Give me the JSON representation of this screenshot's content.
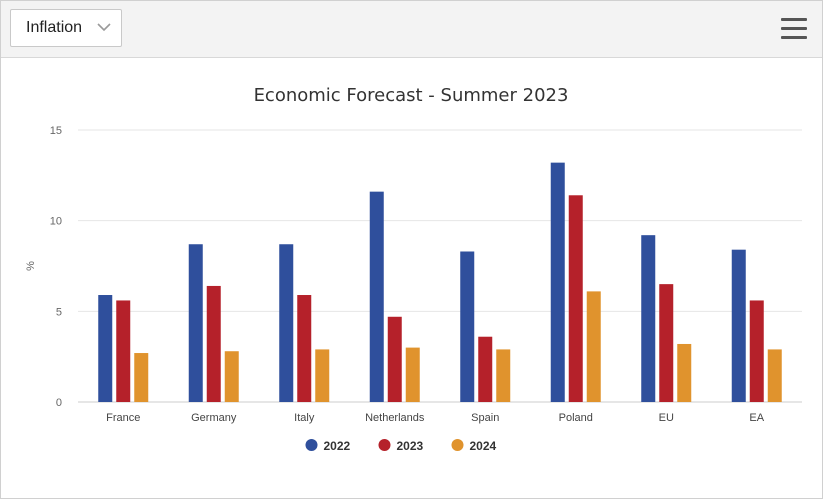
{
  "dropdown": {
    "selected": "Inflation"
  },
  "toolbar": {
    "menu_icon": "hamburger-menu-icon"
  },
  "chart_data": {
    "type": "bar",
    "title": "Economic Forecast - Summer 2023",
    "xlabel": "",
    "ylabel": "%",
    "ylim": [
      0,
      15
    ],
    "yticks": [
      0,
      5,
      10,
      15
    ],
    "grid": true,
    "legend_position": "bottom",
    "categories": [
      "France",
      "Germany",
      "Italy",
      "Netherlands",
      "Spain",
      "Poland",
      "EU",
      "EA"
    ],
    "series": [
      {
        "name": "2022",
        "color": "#2f4f9c",
        "values": [
          5.9,
          8.7,
          8.7,
          11.6,
          8.3,
          13.2,
          9.2,
          8.4
        ]
      },
      {
        "name": "2023",
        "color": "#b5212a",
        "values": [
          5.6,
          6.4,
          5.9,
          4.7,
          3.6,
          11.4,
          6.5,
          5.6
        ]
      },
      {
        "name": "2024",
        "color": "#e0932d",
        "values": [
          2.7,
          2.8,
          2.9,
          3.0,
          2.9,
          6.1,
          3.2,
          2.9
        ]
      }
    ]
  }
}
